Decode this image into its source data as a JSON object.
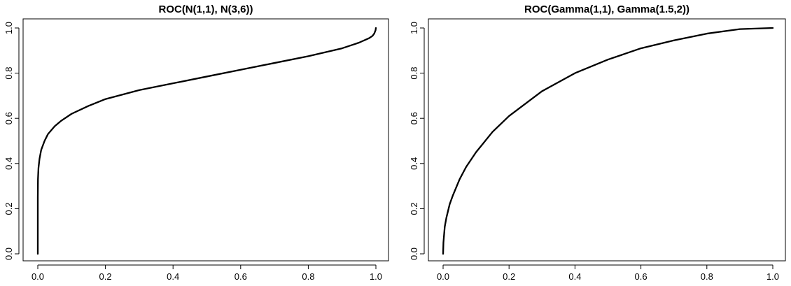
{
  "chart_data": [
    {
      "type": "line",
      "title": "ROC(N(1,1), N(3,6))",
      "xlabel": "",
      "ylabel": "",
      "xlim": [
        0,
        1
      ],
      "ylim": [
        0,
        1
      ],
      "x_ticks": [
        "0.0",
        "0.2",
        "0.4",
        "0.6",
        "0.8",
        "1.0"
      ],
      "y_ticks": [
        "0.0",
        "0.2",
        "0.4",
        "0.6",
        "0.8",
        "1.0"
      ],
      "grid": false,
      "legend": "none",
      "line_color": "#000000",
      "series": [
        {
          "x": [
            0.0,
            0.0,
            0.0005,
            0.002,
            0.005,
            0.01,
            0.02,
            0.03,
            0.05,
            0.07,
            0.1,
            0.15,
            0.2,
            0.3,
            0.4,
            0.5,
            0.6,
            0.7,
            0.8,
            0.9,
            0.95,
            0.98,
            0.99,
            0.995,
            0.999,
            1.0
          ],
          "y": [
            0.0,
            0.25,
            0.33,
            0.38,
            0.42,
            0.46,
            0.5,
            0.53,
            0.565,
            0.59,
            0.62,
            0.655,
            0.685,
            0.725,
            0.755,
            0.785,
            0.815,
            0.845,
            0.875,
            0.91,
            0.935,
            0.955,
            0.965,
            0.975,
            0.99,
            1.0
          ]
        }
      ]
    },
    {
      "type": "line",
      "title": "ROC(Gamma(1,1), Gamma(1.5,2))",
      "xlabel": "",
      "ylabel": "",
      "xlim": [
        0,
        1
      ],
      "ylim": [
        0,
        1
      ],
      "x_ticks": [
        "0.0",
        "0.2",
        "0.4",
        "0.6",
        "0.8",
        "1.0"
      ],
      "y_ticks": [
        "0.0",
        "0.2",
        "0.4",
        "0.6",
        "0.8",
        "1.0"
      ],
      "grid": false,
      "legend": "none",
      "line_color": "#000000",
      "series": [
        {
          "x": [
            0.0,
            0.001,
            0.005,
            0.01,
            0.02,
            0.03,
            0.05,
            0.07,
            0.1,
            0.15,
            0.2,
            0.3,
            0.4,
            0.5,
            0.6,
            0.7,
            0.8,
            0.9,
            1.0
          ],
          "y": [
            0.0,
            0.05,
            0.12,
            0.16,
            0.22,
            0.26,
            0.33,
            0.385,
            0.45,
            0.54,
            0.61,
            0.72,
            0.8,
            0.86,
            0.91,
            0.945,
            0.975,
            0.995,
            1.0
          ]
        }
      ]
    }
  ]
}
